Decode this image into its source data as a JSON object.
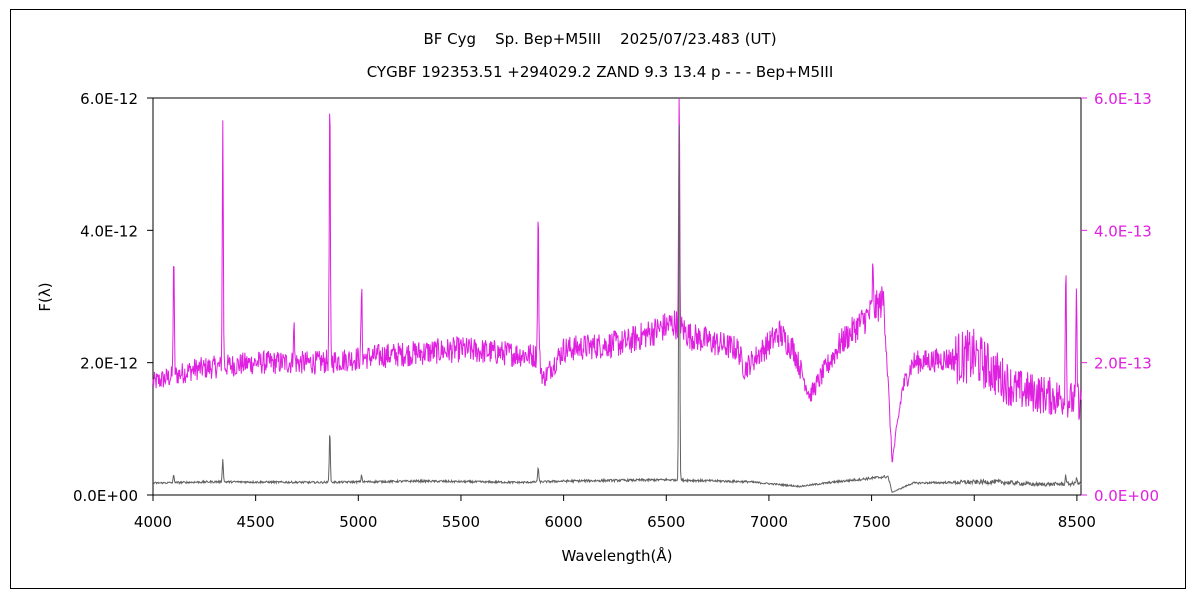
{
  "chart_data": {
    "type": "line",
    "title": "BF Cyg    Sp. Bep+M5III    2025/07/23.483 (UT)",
    "subtitle": "CYGBF 192353.51 +294029.2 ZAND 9.3 13.4 p - - - Bep+M5III",
    "xlabel": "Wavelength(Å)",
    "ylabel": "F(λ)",
    "xlim": [
      4000,
      8520
    ],
    "ylim_left": [
      0,
      6e-12
    ],
    "ylim_right": [
      0,
      6e-13
    ],
    "x_ticks": [
      "4000",
      "4500",
      "5000",
      "5500",
      "6000",
      "6500",
      "7000",
      "7500",
      "8000",
      "8500"
    ],
    "y_ticks_left": [
      "0.0E+00",
      "2.0E-12",
      "4.0E-12",
      "6.0E-12"
    ],
    "y_ticks_right": [
      "0.0E+00",
      "2.0E-13",
      "4.0E-13",
      "6.0E-13"
    ],
    "grid": false,
    "colors": {
      "left_series": "#606060",
      "right_series": "#e020e0"
    },
    "series": [
      {
        "axis": "left",
        "continuum": [
          [
            4000,
            1.8e-13
          ],
          [
            4300,
            2e-13
          ],
          [
            4800,
            1.9e-13
          ],
          [
            5300,
            2.1e-13
          ],
          [
            5800,
            1.9e-13
          ],
          [
            6000,
            2.1e-13
          ],
          [
            6500,
            2.3e-13
          ],
          [
            6900,
            2e-13
          ],
          [
            7150,
            1.3e-13
          ],
          [
            7300,
            1.9e-13
          ],
          [
            7580,
            2.8e-13
          ],
          [
            7600,
            4e-14
          ],
          [
            7700,
            1.8e-13
          ],
          [
            8100,
            2e-13
          ],
          [
            8300,
            1.6e-13
          ],
          [
            8520,
            1.7e-13
          ]
        ],
        "lines": [
          [
            4101,
            3e-13
          ],
          [
            4340,
            5.5e-13
          ],
          [
            4861,
            9.7e-13
          ],
          [
            5016,
            3e-13
          ],
          [
            5876,
            4.2e-13
          ],
          [
            6563,
            5.7e-12
          ],
          [
            8446,
            3e-13
          ],
          [
            8498,
            2.8e-13
          ]
        ]
      },
      {
        "axis": "right",
        "continuum": [
          [
            4000,
            1.7e-13
          ],
          [
            4200,
            1.9e-13
          ],
          [
            4500,
            2e-13
          ],
          [
            4800,
            2e-13
          ],
          [
            5100,
            2.1e-13
          ],
          [
            5500,
            2.2e-13
          ],
          [
            5880,
            2.1e-13
          ],
          [
            5900,
            1.75e-13
          ],
          [
            6000,
            2.2e-13
          ],
          [
            6300,
            2.3e-13
          ],
          [
            6540,
            2.6e-13
          ],
          [
            6620,
            2.4e-13
          ],
          [
            6850,
            2.2e-13
          ],
          [
            6880,
            1.9e-13
          ],
          [
            7050,
            2.45e-13
          ],
          [
            7120,
            2.2e-13
          ],
          [
            7200,
            1.5e-13
          ],
          [
            7350,
            2.3e-13
          ],
          [
            7560,
            2.95e-13
          ],
          [
            7600,
            5e-14
          ],
          [
            7650,
            1.6e-13
          ],
          [
            7700,
            2e-13
          ],
          [
            8000,
            2.1e-13
          ],
          [
            8200,
            1.6e-13
          ],
          [
            8520,
            1.4e-13
          ]
        ],
        "lines": [
          [
            4101,
            3.6e-13
          ],
          [
            4340,
            5.6e-13
          ],
          [
            4686,
            2.6e-13
          ],
          [
            4861,
            6e-13
          ],
          [
            5016,
            3.1e-13
          ],
          [
            5876,
            4.25e-13
          ],
          [
            6563,
            6e-13
          ],
          [
            7506,
            3.4e-13
          ],
          [
            8446,
            3.6e-13
          ],
          [
            8498,
            3e-13
          ]
        ]
      }
    ]
  }
}
